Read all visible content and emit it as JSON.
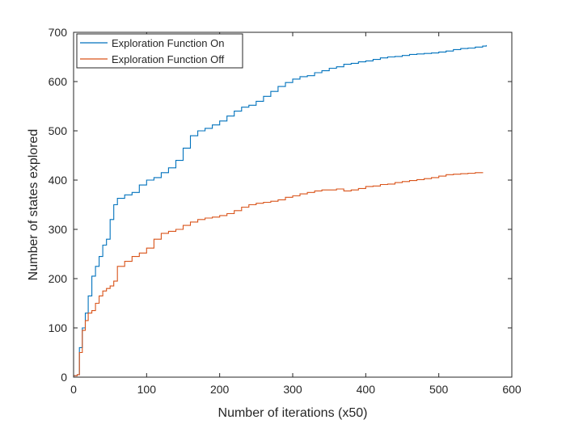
{
  "chart_data": {
    "type": "line",
    "xlabel": "Number of iterations (x50)",
    "ylabel": "Number of states explored",
    "xlim": [
      0,
      600
    ],
    "ylim": [
      0,
      700
    ],
    "xticks": [
      0,
      100,
      200,
      300,
      400,
      500,
      600
    ],
    "yticks": [
      0,
      100,
      200,
      300,
      400,
      500,
      600,
      700
    ],
    "grid": false,
    "legend_position": "top-left",
    "series": [
      {
        "name": "Exploration Function On",
        "color": "#0072BD",
        "x": [
          0,
          5,
          8,
          12,
          16,
          20,
          25,
          30,
          35,
          40,
          45,
          50,
          55,
          60,
          70,
          80,
          90,
          100,
          110,
          120,
          130,
          140,
          150,
          160,
          170,
          180,
          190,
          200,
          210,
          220,
          230,
          240,
          250,
          260,
          270,
          280,
          290,
          300,
          310,
          320,
          330,
          340,
          350,
          360,
          370,
          380,
          390,
          400,
          410,
          420,
          430,
          440,
          450,
          460,
          470,
          480,
          490,
          500,
          510,
          520,
          530,
          540,
          550,
          560,
          565
        ],
        "y": [
          3,
          5,
          60,
          100,
          130,
          165,
          205,
          225,
          245,
          268,
          280,
          320,
          350,
          363,
          370,
          375,
          390,
          400,
          405,
          415,
          425,
          440,
          465,
          490,
          500,
          505,
          512,
          520,
          530,
          540,
          548,
          552,
          560,
          570,
          580,
          590,
          598,
          605,
          610,
          612,
          618,
          622,
          627,
          630,
          635,
          637,
          640,
          642,
          645,
          648,
          650,
          651,
          653,
          655,
          656,
          657,
          658,
          660,
          662,
          665,
          667,
          668,
          670,
          672,
          674
        ]
      },
      {
        "name": "Exploration Function Off",
        "color": "#D95319",
        "x": [
          0,
          5,
          8,
          12,
          16,
          20,
          25,
          30,
          35,
          40,
          45,
          50,
          55,
          60,
          70,
          80,
          90,
          100,
          110,
          120,
          130,
          140,
          150,
          160,
          170,
          180,
          190,
          200,
          210,
          220,
          230,
          240,
          250,
          260,
          270,
          280,
          290,
          300,
          310,
          320,
          330,
          340,
          350,
          360,
          370,
          380,
          390,
          400,
          410,
          420,
          430,
          440,
          450,
          460,
          470,
          480,
          490,
          500,
          510,
          520,
          530,
          540,
          550,
          560
        ],
        "y": [
          3,
          5,
          50,
          95,
          115,
          130,
          135,
          150,
          165,
          175,
          180,
          185,
          195,
          225,
          235,
          245,
          252,
          262,
          280,
          292,
          296,
          300,
          308,
          315,
          320,
          323,
          325,
          328,
          332,
          338,
          345,
          350,
          353,
          355,
          357,
          360,
          365,
          368,
          372,
          375,
          378,
          380,
          380,
          382,
          378,
          380,
          383,
          387,
          388,
          391,
          392,
          395,
          397,
          399,
          401,
          403,
          405,
          408,
          411,
          412,
          413,
          414,
          415,
          416
        ]
      }
    ]
  }
}
